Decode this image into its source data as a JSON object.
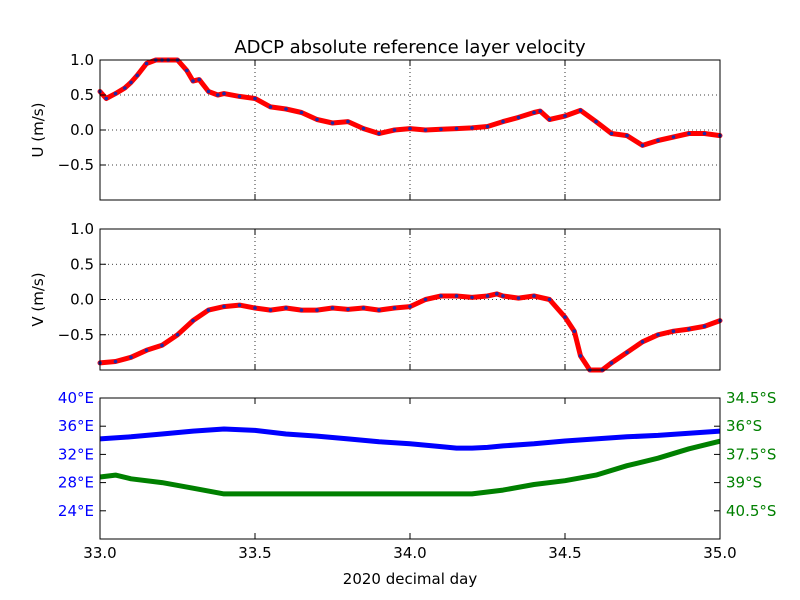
{
  "chart_data": {
    "type": "line",
    "title": "ADCP absolute reference layer velocity",
    "xlabel": "2020 decimal day",
    "xlim": [
      33.0,
      35.0
    ],
    "x_ticks": [
      "33.0",
      "33.5",
      "34.0",
      "34.5",
      "35.0"
    ],
    "grid": true,
    "colors": {
      "velocity_line": "#ff0000",
      "velocity_marker": "#1e2aa8",
      "lon": "#0000ff",
      "lat": "#008000"
    },
    "panels": [
      {
        "ylabel": "U (m/s)",
        "ylim": [
          -1.0,
          1.0
        ],
        "y_ticks": [
          "1.0",
          "0.5",
          "0.0",
          "−0.5"
        ],
        "x": [
          33.0,
          33.02,
          33.05,
          33.08,
          33.1,
          33.12,
          33.15,
          33.18,
          33.2,
          33.22,
          33.25,
          33.28,
          33.3,
          33.32,
          33.35,
          33.38,
          33.4,
          33.45,
          33.5,
          33.55,
          33.6,
          33.65,
          33.7,
          33.75,
          33.8,
          33.85,
          33.9,
          33.95,
          34.0,
          34.05,
          34.1,
          34.15,
          34.2,
          34.25,
          34.3,
          34.35,
          34.4,
          34.42,
          34.45,
          34.5,
          34.55,
          34.6,
          34.65,
          34.7,
          34.75,
          34.8,
          34.85,
          34.9,
          34.95,
          35.0
        ],
        "values": [
          0.55,
          0.45,
          0.52,
          0.6,
          0.68,
          0.78,
          0.95,
          1.0,
          1.0,
          1.0,
          1.0,
          0.85,
          0.7,
          0.72,
          0.55,
          0.5,
          0.52,
          0.48,
          0.45,
          0.33,
          0.3,
          0.25,
          0.15,
          0.1,
          0.12,
          0.02,
          -0.05,
          0.0,
          0.02,
          0.0,
          0.01,
          0.02,
          0.03,
          0.05,
          0.12,
          0.18,
          0.25,
          0.27,
          0.15,
          0.2,
          0.28,
          0.12,
          -0.05,
          -0.08,
          -0.22,
          -0.15,
          -0.1,
          -0.05,
          -0.05,
          -0.08
        ],
        "series": [
          {
            "values_ref": "values"
          }
        ]
      },
      {
        "ylabel": "V (m/s)",
        "ylim": [
          -1.0,
          1.0
        ],
        "y_ticks": [
          "1.0",
          "0.5",
          "0.0",
          "−0.5"
        ],
        "x": [
          33.0,
          33.05,
          33.1,
          33.15,
          33.2,
          33.25,
          33.3,
          33.35,
          33.4,
          33.45,
          33.5,
          33.55,
          33.6,
          33.65,
          33.7,
          33.75,
          33.8,
          33.85,
          33.9,
          33.95,
          34.0,
          34.05,
          34.1,
          34.15,
          34.2,
          34.25,
          34.28,
          34.3,
          34.35,
          34.4,
          34.45,
          34.5,
          34.53,
          34.55,
          34.58,
          34.62,
          34.65,
          34.7,
          34.75,
          34.8,
          34.85,
          34.9,
          34.95,
          35.0
        ],
        "values": [
          -0.9,
          -0.88,
          -0.82,
          -0.72,
          -0.65,
          -0.5,
          -0.3,
          -0.15,
          -0.1,
          -0.08,
          -0.12,
          -0.15,
          -0.12,
          -0.15,
          -0.15,
          -0.12,
          -0.14,
          -0.12,
          -0.15,
          -0.12,
          -0.1,
          0.0,
          0.05,
          0.05,
          0.03,
          0.05,
          0.08,
          0.05,
          0.02,
          0.05,
          0.0,
          -0.25,
          -0.45,
          -0.8,
          -1.0,
          -1.0,
          -0.9,
          -0.75,
          -0.6,
          -0.5,
          -0.45,
          -0.42,
          -0.38,
          -0.3
        ]
      },
      {
        "left_axis": {
          "ylim": [
            20,
            40
          ],
          "y_ticks": [
            "40°E",
            "36°E",
            "32°E",
            "28°E",
            "24°E"
          ],
          "label": ""
        },
        "right_axis": {
          "ylim": [
            -42.0,
            -34.5
          ],
          "y_ticks": [
            "34.5°S",
            "36°S",
            "37.5°S",
            "39°S",
            "40.5°S"
          ],
          "label": ""
        },
        "series": [
          {
            "axis": "left",
            "color_key": "lon",
            "x": [
              33.0,
              33.1,
              33.2,
              33.3,
              33.4,
              33.5,
              33.6,
              33.7,
              33.8,
              33.9,
              34.0,
              34.1,
              34.15,
              34.2,
              34.25,
              34.3,
              34.4,
              34.5,
              34.6,
              34.7,
              34.8,
              34.9,
              35.0
            ],
            "values": [
              34.2,
              34.5,
              34.9,
              35.3,
              35.6,
              35.4,
              34.9,
              34.6,
              34.2,
              33.8,
              33.5,
              33.1,
              32.9,
              32.9,
              33.0,
              33.2,
              33.5,
              33.9,
              34.2,
              34.5,
              34.7,
              35.0,
              35.3
            ]
          },
          {
            "axis": "right",
            "color_key": "lat",
            "x": [
              33.0,
              33.05,
              33.1,
              33.2,
              33.3,
              33.4,
              33.5,
              33.6,
              33.7,
              33.8,
              33.9,
              34.0,
              34.1,
              34.2,
              34.25,
              34.3,
              34.4,
              34.5,
              34.6,
              34.7,
              34.8,
              34.9,
              35.0
            ],
            "values": [
              -38.7,
              -38.6,
              -38.8,
              -39.0,
              -39.3,
              -39.6,
              -39.6,
              -39.6,
              -39.6,
              -39.6,
              -39.6,
              -39.6,
              -39.6,
              -39.6,
              -39.5,
              -39.4,
              -39.1,
              -38.9,
              -38.6,
              -38.1,
              -37.7,
              -37.2,
              -36.8
            ]
          }
        ]
      }
    ]
  }
}
